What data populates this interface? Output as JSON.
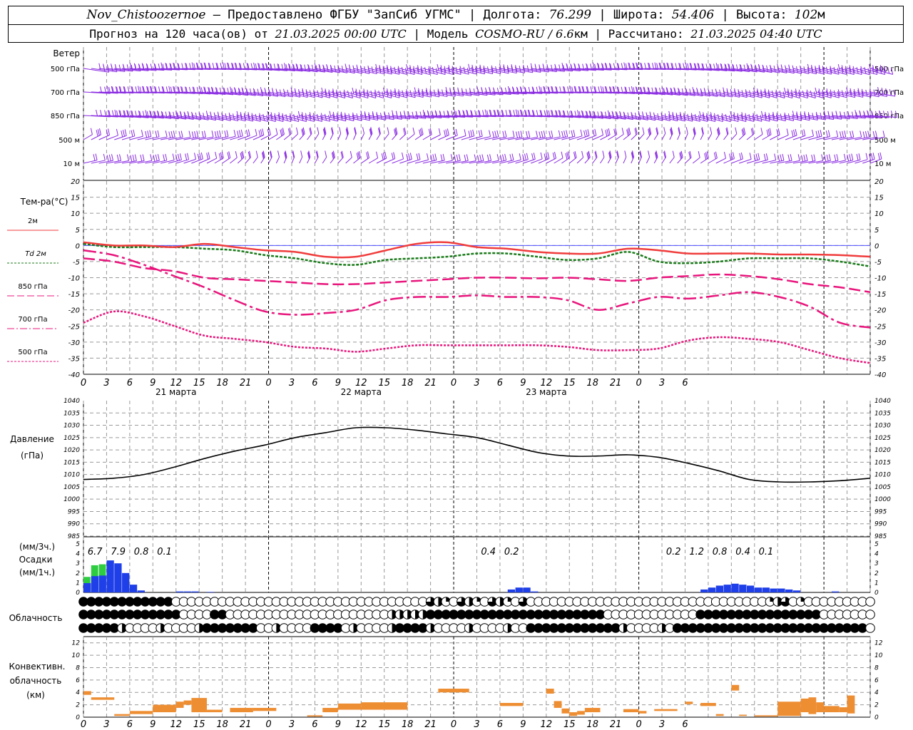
{
  "header": {
    "station": "Nov_Chistoozernoe",
    "provider": "Предоставлено ФГБУ \"ЗапСиб УГМС\"",
    "lon_label": "Долгота:",
    "lon": "76.299",
    "lat_label": "Широта:",
    "lat": "54.406",
    "alt_label": "Высота:",
    "alt": "102",
    "alt_unit": "м",
    "forecast_label": "Прогноз на 120 часа(ов) от",
    "forecast_start": "21.03.2025 00:00 UTC",
    "model_label": "Модель",
    "model": "COSMO-RU / 6.6",
    "model_unit": "км",
    "calc_label": "Рассчитано:",
    "calc_time": "21.03.2025 04:40 UTC"
  },
  "labels": {
    "wind": "Ветер",
    "wind_levels": [
      "500 гПа",
      "700 гПа",
      "850 гПа",
      "500 м",
      "10  м"
    ],
    "temp": "Тем-ра(°C)",
    "temp_legend": [
      "2м",
      "Td  2м",
      "850 гПа",
      "700 гПа",
      "500 гПа"
    ],
    "pressure": "Давление",
    "pressure_unit": "(гПа)",
    "precip_unit3": "(мм/3ч.)",
    "precip": "Осадки",
    "precip_unit1": "(мм/1ч.)",
    "cloud": "Облачность",
    "conv1": "Конвективн.",
    "conv2": "облачность",
    "conv_unit": "(км)"
  },
  "colors": {
    "wind": "#8a2be2",
    "t2m": "#f03c3c",
    "td2m": "#1a7a1a",
    "t850": "#e8157c",
    "t700": "#e8157c",
    "t500": "#e8157c",
    "pressure": "#000000",
    "precip3h": "#2ecc40",
    "precip1h": "#1f3fe8",
    "conv": "#ee8e33",
    "zero_line": "#5050ff"
  },
  "chart_data": {
    "type": "line",
    "x_hours": [
      0,
      3,
      6,
      9,
      12,
      15,
      18,
      21,
      0,
      3,
      6,
      9,
      12,
      15,
      18,
      21,
      0,
      3,
      6,
      9,
      12,
      15,
      18,
      21,
      0,
      3,
      6
    ],
    "day_labels": [
      "21 марта",
      "22 марта",
      "23 марта"
    ],
    "temp_axis": {
      "ylim": [
        -40,
        20
      ],
      "ticks": [
        20,
        15,
        10,
        5,
        0,
        -5,
        -10,
        -15,
        -20,
        -25,
        -30,
        -35,
        -40
      ]
    },
    "temperature_series": [
      {
        "name": "2м",
        "values": [
          1,
          0,
          0,
          -0.5,
          0.5,
          -0.5,
          -1.5,
          -2,
          -3.5,
          -3.5,
          -1.5,
          0.5,
          1,
          -0.5,
          -1,
          -2,
          -2.5,
          -2.5,
          -1,
          -1.5,
          -2.5,
          -2.5,
          -2.5,
          -2.8,
          -2.8,
          -3,
          -3.5
        ]
      },
      {
        "name": "Td  2м",
        "values": [
          0.5,
          -0.5,
          -0.5,
          -0.5,
          -1,
          -1.5,
          -3,
          -4,
          -5.5,
          -6,
          -4.5,
          -4,
          -3.5,
          -2.5,
          -2.5,
          -3.5,
          -4.5,
          -4,
          -2,
          -5,
          -5.5,
          -5,
          -4,
          -4,
          -4,
          -5,
          -6.5
        ]
      },
      {
        "name": "850 гПа",
        "values": [
          -4,
          -5,
          -7,
          -8,
          -10,
          -10.5,
          -11,
          -11.5,
          -12,
          -12,
          -11.5,
          -11,
          -10.5,
          -10,
          -10,
          -10.2,
          -10,
          -10.5,
          -11,
          -10,
          -9.5,
          -9,
          -9.5,
          -10.5,
          -12,
          -13,
          -14.5
        ]
      },
      {
        "name": "700 гПа",
        "values": [
          -1.5,
          -3,
          -6,
          -9.5,
          -13,
          -17,
          -20.5,
          -21.5,
          -21,
          -20,
          -17,
          -16,
          -16,
          -15.5,
          -16,
          -16,
          -17,
          -20,
          -18,
          -16,
          -16.5,
          -15.5,
          -14.5,
          -16,
          -19,
          -24,
          -25.5
        ]
      },
      {
        "name": "500 гПа",
        "values": [
          -21,
          -19.5,
          -21.5,
          -24.5,
          -28,
          -28.5,
          -29.5,
          -31,
          -31.5,
          -32,
          -32.5,
          -31.5,
          -31,
          -31.5,
          -31,
          -31.5,
          -32,
          -34,
          -33.5,
          -33,
          -30,
          -29,
          -29,
          -30,
          -31.5,
          -33.5,
          -36.5
        ]
      },
      {
        "name": "",
        "values": [
          -24,
          -20.5,
          -22,
          -25,
          -28,
          -29,
          -30,
          -31.5,
          -32,
          -33,
          -32,
          -31,
          -31,
          -31,
          -31,
          -31,
          -31.5,
          -32.5,
          -32.5,
          -32,
          -29.5,
          -28.5,
          -29,
          -30,
          -32.5,
          -35,
          -36.5
        ]
      }
    ],
    "pressure": {
      "ylim": [
        985,
        1040
      ],
      "ticks": [
        1040,
        1035,
        1030,
        1025,
        1020,
        1015,
        1010,
        1005,
        1000,
        995,
        990,
        985
      ],
      "values": [
        1008,
        1008.5,
        1010,
        1013,
        1016.5,
        1019.5,
        1022,
        1025,
        1027,
        1029,
        1029,
        1028,
        1026.5,
        1025,
        1022,
        1019,
        1017.5,
        1017.5,
        1018,
        1017,
        1014.5,
        1011.5,
        1008,
        1007,
        1007,
        1007.5,
        1008.5
      ]
    },
    "precip": {
      "ylim": [
        0,
        5
      ],
      "ticks": [
        5,
        4,
        3,
        2,
        1,
        0
      ],
      "sum3h_labels": [
        {
          "hour": 3,
          "text": "6.7"
        },
        {
          "hour": 6,
          "text": "7.9"
        },
        {
          "hour": 9,
          "text": "0.8"
        },
        {
          "hour": 12,
          "text": "0.1"
        },
        {
          "hour": 54,
          "text": "0.4"
        },
        {
          "hour": 57,
          "text": "0.2"
        },
        {
          "hour": 78,
          "text": "0.2"
        },
        {
          "hour": 81,
          "text": "1.2"
        },
        {
          "hour": 84,
          "text": "0.8"
        },
        {
          "hour": 87,
          "text": "0.4"
        },
        {
          "hour": 90,
          "text": "0.1"
        }
      ],
      "hourly_mm": [
        1.6,
        2.8,
        2.9,
        3.3,
        3,
        2,
        0.8,
        0.2,
        0,
        0,
        0,
        0,
        0.1,
        0.1,
        0.1,
        0,
        0.05,
        0,
        0,
        0,
        0,
        0,
        0,
        0,
        0,
        0,
        0,
        0,
        0,
        0,
        0,
        0,
        0,
        0,
        0,
        0,
        0,
        0,
        0,
        0,
        0,
        0,
        0,
        0,
        0,
        0,
        0,
        0,
        0,
        0,
        0,
        0,
        0,
        0,
        0,
        0.3,
        0.5,
        0.5,
        0.1,
        0,
        0,
        0,
        0,
        0,
        0,
        0,
        0,
        0,
        0,
        0,
        0,
        0,
        0,
        0,
        0,
        0,
        0,
        0,
        0,
        0,
        0.3,
        0.5,
        0.7,
        0.8,
        0.9,
        0.8,
        0.7,
        0.5,
        0.5,
        0.4,
        0.4,
        0.3,
        0.2,
        0,
        0,
        0,
        0,
        0.1
      ],
      "hourly_3h_green": [
        1.6,
        2.8,
        2.9
      ]
    },
    "cloud_rows": 3,
    "convective_cloud_km": {
      "ylim": [
        0,
        13
      ],
      "ticks": [
        12,
        10,
        8,
        6,
        4,
        2,
        0
      ],
      "segments": [
        {
          "from": 0,
          "to": 1,
          "lo": 3.6,
          "hi": 4.2
        },
        {
          "from": 1,
          "to": 4,
          "lo": 2.8,
          "hi": 3.2
        },
        {
          "from": 4,
          "to": 6,
          "lo": 0.2,
          "hi": 0.5
        },
        {
          "from": 6,
          "to": 9,
          "lo": 0.5,
          "hi": 1
        },
        {
          "from": 9,
          "to": 12,
          "lo": 0.8,
          "hi": 2
        },
        {
          "from": 12,
          "to": 13,
          "lo": 1.5,
          "hi": 2.5
        },
        {
          "from": 13,
          "to": 14,
          "lo": 2,
          "hi": 2.7
        },
        {
          "from": 14,
          "to": 16,
          "lo": 0.8,
          "hi": 3.1
        },
        {
          "from": 16,
          "to": 18,
          "lo": 0.8,
          "hi": 1.2
        },
        {
          "from": 19,
          "to": 22,
          "lo": 0.8,
          "hi": 1.5
        },
        {
          "from": 22,
          "to": 25,
          "lo": 1,
          "hi": 1.5
        },
        {
          "from": 29,
          "to": 31,
          "lo": 0.1,
          "hi": 0.3
        },
        {
          "from": 31,
          "to": 33,
          "lo": 0.8,
          "hi": 1.5
        },
        {
          "from": 33,
          "to": 36,
          "lo": 1.2,
          "hi": 2.2
        },
        {
          "from": 36,
          "to": 42,
          "lo": 1.2,
          "hi": 2.4
        },
        {
          "from": 46,
          "to": 50,
          "lo": 4,
          "hi": 4.6
        },
        {
          "from": 54,
          "to": 57,
          "lo": 1.8,
          "hi": 2.3
        },
        {
          "from": 60,
          "to": 61,
          "lo": 3.8,
          "hi": 4.6
        },
        {
          "from": 61,
          "to": 62,
          "lo": 1.5,
          "hi": 2.6
        },
        {
          "from": 62,
          "to": 63,
          "lo": 0.6,
          "hi": 1.4
        },
        {
          "from": 63,
          "to": 64,
          "lo": 0.2,
          "hi": 0.8
        },
        {
          "from": 64,
          "to": 65,
          "lo": 0.4,
          "hi": 1
        },
        {
          "from": 65,
          "to": 67,
          "lo": 0.8,
          "hi": 1.5
        },
        {
          "from": 70,
          "to": 72,
          "lo": 0.8,
          "hi": 1.3
        },
        {
          "from": 72,
          "to": 73,
          "lo": 0.6,
          "hi": 1
        },
        {
          "from": 74,
          "to": 77,
          "lo": 1,
          "hi": 1.3
        },
        {
          "from": 78,
          "to": 79,
          "lo": 2.1,
          "hi": 2.5
        },
        {
          "from": 80,
          "to": 82,
          "lo": 1.8,
          "hi": 2.3
        },
        {
          "from": 82,
          "to": 83,
          "lo": 0.2,
          "hi": 0.5
        },
        {
          "from": 84,
          "to": 85,
          "lo": 4.3,
          "hi": 5.2
        },
        {
          "from": 85,
          "to": 86,
          "lo": 0.2,
          "hi": 0.4
        },
        {
          "from": 87,
          "to": 90,
          "lo": 0.1,
          "hi": 0.3
        },
        {
          "from": 90,
          "to": 93,
          "lo": 0.2,
          "hi": 2.5
        },
        {
          "from": 93,
          "to": 94,
          "lo": 0.8,
          "hi": 3
        },
        {
          "from": 94,
          "to": 95,
          "lo": 0.5,
          "hi": 3.2
        },
        {
          "from": 95,
          "to": 96,
          "lo": 0.8,
          "hi": 2.4
        },
        {
          "from": 96,
          "to": 98,
          "lo": 0.8,
          "hi": 1.8
        },
        {
          "from": 98,
          "to": 99,
          "lo": 0.8,
          "hi": 1.6
        },
        {
          "from": 99,
          "to": 100,
          "lo": 0.6,
          "hi": 3.5
        }
      ]
    }
  }
}
